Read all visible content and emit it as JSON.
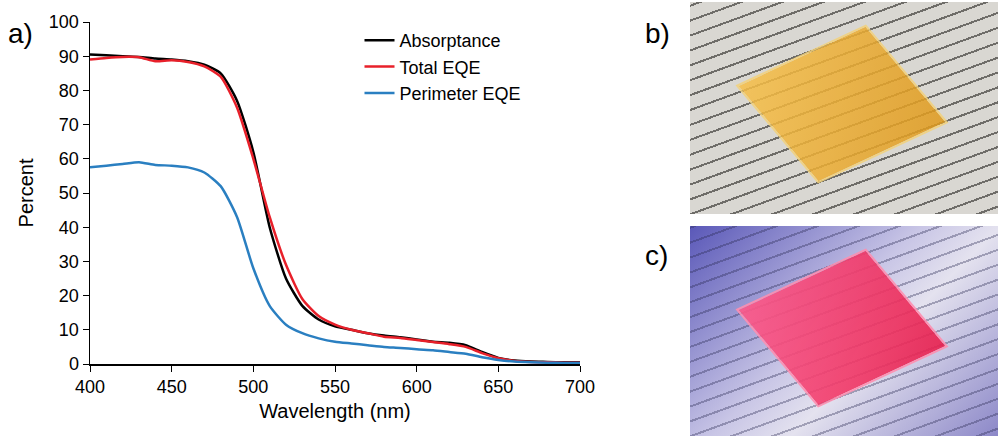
{
  "chart_data": {
    "type": "line",
    "x_label": "Wavelength (nm)",
    "y_label": "Percent",
    "x": [
      400,
      410,
      420,
      430,
      440,
      450,
      460,
      470,
      480,
      490,
      500,
      510,
      520,
      530,
      540,
      550,
      560,
      570,
      580,
      590,
      600,
      610,
      620,
      630,
      640,
      650,
      660,
      670,
      680,
      690,
      700
    ],
    "series": [
      {
        "name": "Absorptance",
        "color": "#000000",
        "values": [
          90.5,
          90.3,
          90,
          89.8,
          89.3,
          89,
          88.5,
          87.5,
          85,
          77,
          62,
          40,
          25,
          17,
          13,
          11,
          10,
          9,
          8.3,
          7.8,
          7.2,
          6.5,
          6.2,
          5.5,
          3.5,
          1.8,
          1.0,
          0.7,
          0.6,
          0.5,
          0.5
        ]
      },
      {
        "name": "Total EQE",
        "color": "#e8202a",
        "values": [
          89,
          89.5,
          89.8,
          89.7,
          88.5,
          88.8,
          88.3,
          87,
          84,
          75,
          60,
          43,
          29,
          19,
          14,
          11.5,
          10,
          9,
          8,
          7.6,
          7,
          6.4,
          5.8,
          5,
          3.2,
          1.7,
          0.9,
          0.6,
          0.5,
          0.4,
          0.4
        ]
      },
      {
        "name": "Perimeter EQE",
        "color": "#2a7fc1",
        "values": [
          57.5,
          58,
          58.5,
          59,
          58.2,
          58,
          57.5,
          56,
          52,
          43,
          28,
          17,
          11.5,
          9,
          7.5,
          6.5,
          6,
          5.5,
          5,
          4.7,
          4.3,
          4,
          3.5,
          3,
          2,
          1.2,
          0.7,
          0.5,
          0.4,
          0.3,
          0.3
        ]
      }
    ],
    "xlim": [
      400,
      700
    ],
    "xticks": [
      400,
      450,
      500,
      550,
      600,
      650,
      700
    ],
    "ylim": [
      0,
      100
    ],
    "yticks": [
      0,
      10,
      20,
      30,
      40,
      50,
      60,
      70,
      80,
      90,
      100
    ],
    "grid": false,
    "legend": "top right"
  },
  "panel_labels": [
    "a)",
    "b)",
    "c)"
  ]
}
